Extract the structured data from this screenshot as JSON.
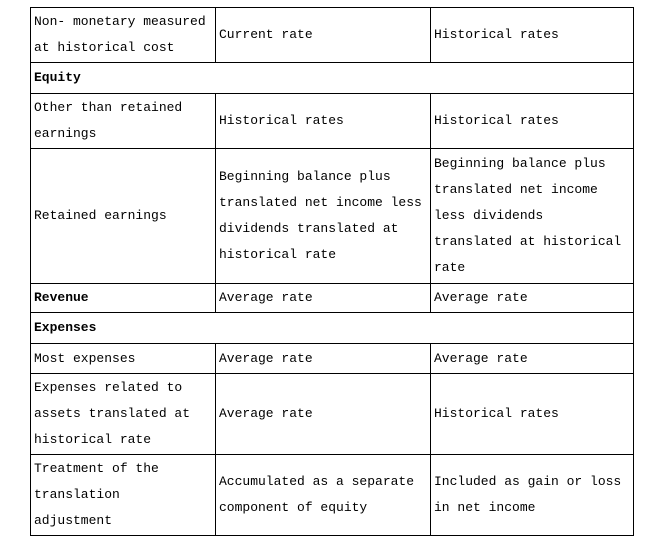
{
  "table": {
    "rows": [
      {
        "type": "data",
        "cells": [
          "Non- monetary measured\nat historical cost",
          "Current rate",
          "Historical rates"
        ]
      },
      {
        "type": "section",
        "label": "Equity"
      },
      {
        "type": "data",
        "cells": [
          "Other than retained\nearnings",
          "Historical rates",
          "Historical rates"
        ]
      },
      {
        "type": "data",
        "cells": [
          "Retained earnings",
          "Beginning balance plus\ntranslated net income less\ndividends translated at\nhistorical rate",
          "Beginning balance plus\ntranslated net income\nless dividends\ntranslated at historical\nrate"
        ]
      },
      {
        "type": "data",
        "label_bold": true,
        "cells": [
          "Revenue",
          "Average rate",
          "Average rate"
        ]
      },
      {
        "type": "section",
        "label": "Expenses"
      },
      {
        "type": "data",
        "cells": [
          "Most expenses",
          "Average rate",
          "Average rate"
        ]
      },
      {
        "type": "data",
        "cells": [
          "Expenses related to\nassets translated at\nhistorical rate",
          "Average rate",
          "Historical rates"
        ]
      },
      {
        "type": "data",
        "cells": [
          "Treatment of the\ntranslation\nadjustment",
          "Accumulated as a separate\ncomponent of equity",
          "Included as gain or loss\nin net income"
        ]
      }
    ],
    "colors": {
      "border": "#000000",
      "text": "#000000",
      "background": "#ffffff"
    }
  }
}
